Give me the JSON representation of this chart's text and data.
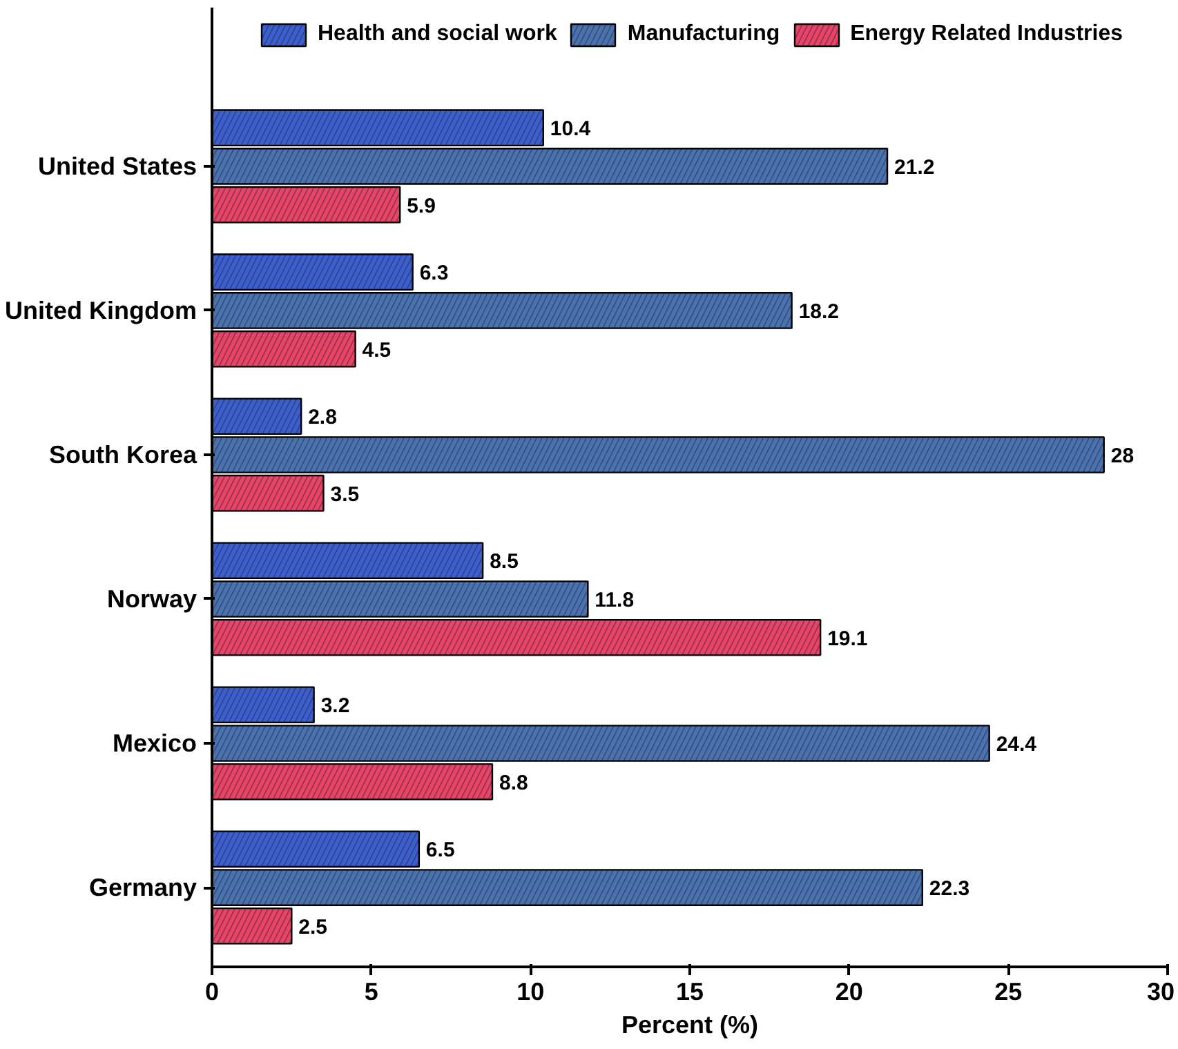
{
  "chart_data": {
    "type": "bar",
    "orientation": "horizontal",
    "xlabel": "Percent (%)",
    "categories": [
      "United States",
      "United Kingdom",
      "South Korea",
      "Norway",
      "Mexico",
      "Germany"
    ],
    "series": [
      {
        "name": "Health and social work",
        "color": "#3b5fd0",
        "values": [
          10.4,
          6.3,
          2.8,
          8.5,
          3.2,
          6.5
        ]
      },
      {
        "name": "Manufacturing",
        "color": "#4a72b0",
        "values": [
          21.2,
          18.2,
          28,
          11.8,
          24.4,
          22.3
        ]
      },
      {
        "name": "Energy Related Industries",
        "color": "#e8446a",
        "values": [
          5.9,
          4.5,
          3.5,
          19.1,
          8.8,
          2.5
        ]
      }
    ],
    "xlim": [
      0,
      30
    ],
    "xticks": [
      0,
      5,
      10,
      15,
      20,
      25,
      30
    ],
    "data_labels": true,
    "legend": "top",
    "grid": false
  }
}
